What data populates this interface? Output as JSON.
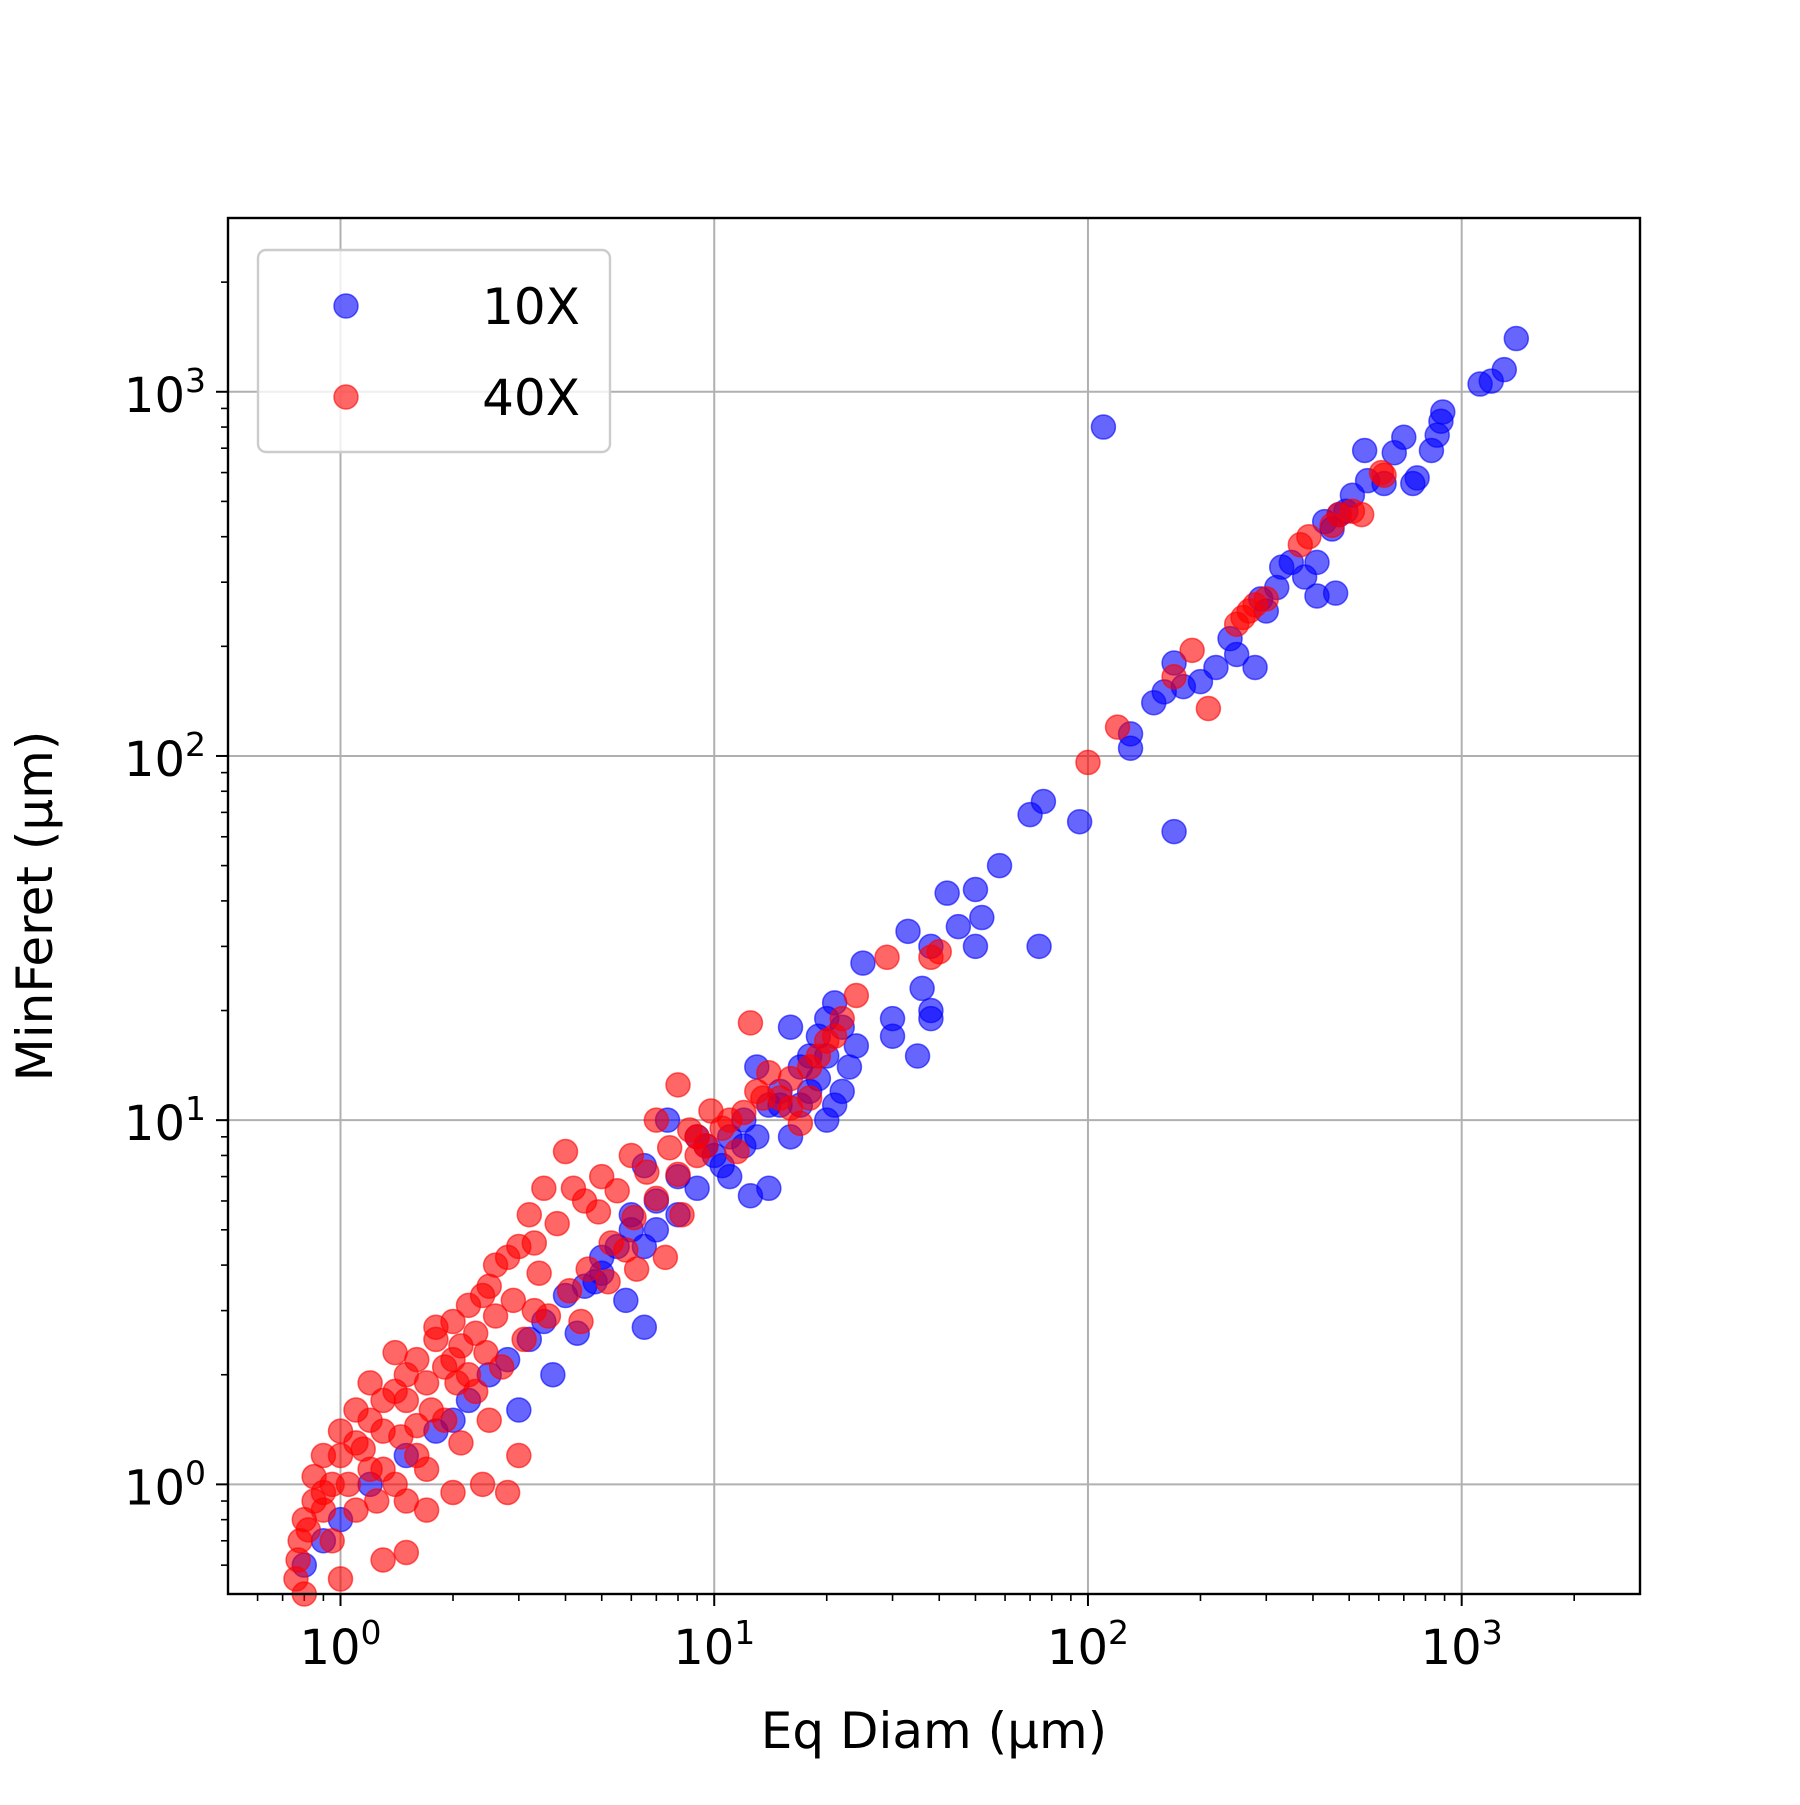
{
  "chart_data": {
    "type": "scatter",
    "title": "",
    "xlabel": "Eq Diam (μm)",
    "ylabel": "MinFeret (μm)",
    "xscale": "log",
    "yscale": "log",
    "xlim": [
      0.5,
      3000
    ],
    "ylim": [
      0.5,
      3000
    ],
    "grid": true,
    "legend_position": "top-left",
    "x_ticks": [
      {
        "base": "10",
        "exp": "0",
        "value": 1
      },
      {
        "base": "10",
        "exp": "1",
        "value": 10
      },
      {
        "base": "10",
        "exp": "2",
        "value": 100
      },
      {
        "base": "10",
        "exp": "3",
        "value": 1000
      }
    ],
    "y_ticks": [
      {
        "base": "10",
        "exp": "0",
        "value": 1
      },
      {
        "base": "10",
        "exp": "1",
        "value": 10
      },
      {
        "base": "10",
        "exp": "2",
        "value": 100
      },
      {
        "base": "10",
        "exp": "3",
        "value": 1000
      }
    ],
    "series": [
      {
        "name": "10X",
        "color": "#0000ff",
        "alpha": 0.6,
        "points": [
          [
            1400,
            1400
          ],
          [
            1300,
            1150
          ],
          [
            1200,
            1070
          ],
          [
            1120,
            1050
          ],
          [
            890,
            880
          ],
          [
            880,
            830
          ],
          [
            860,
            760
          ],
          [
            830,
            690
          ],
          [
            760,
            580
          ],
          [
            740,
            560
          ],
          [
            700,
            750
          ],
          [
            660,
            680
          ],
          [
            620,
            560
          ],
          [
            560,
            570
          ],
          [
            550,
            690
          ],
          [
            510,
            520
          ],
          [
            490,
            470
          ],
          [
            470,
            460
          ],
          [
            450,
            420
          ],
          [
            430,
            440
          ],
          [
            460,
            280
          ],
          [
            410,
            275
          ],
          [
            410,
            340
          ],
          [
            380,
            310
          ],
          [
            350,
            340
          ],
          [
            330,
            330
          ],
          [
            320,
            290
          ],
          [
            300,
            250
          ],
          [
            290,
            270
          ],
          [
            280,
            175
          ],
          [
            250,
            190
          ],
          [
            240,
            210
          ],
          [
            220,
            175
          ],
          [
            200,
            160
          ],
          [
            180,
            155
          ],
          [
            170,
            180
          ],
          [
            160,
            150
          ],
          [
            150,
            140
          ],
          [
            130,
            115
          ],
          [
            130,
            105
          ],
          [
            110,
            800
          ],
          [
            170,
            62
          ],
          [
            95,
            66
          ],
          [
            76,
            75
          ],
          [
            70,
            69
          ],
          [
            58,
            50
          ],
          [
            50,
            43
          ],
          [
            52,
            36
          ],
          [
            45,
            34
          ],
          [
            50,
            30
          ],
          [
            42,
            42
          ],
          [
            38,
            30
          ],
          [
            33,
            33
          ],
          [
            74,
            30
          ],
          [
            36,
            23
          ],
          [
            38,
            19
          ],
          [
            38,
            20
          ],
          [
            30,
            19
          ],
          [
            30,
            17
          ],
          [
            25,
            27
          ],
          [
            35,
            15
          ],
          [
            21,
            21
          ],
          [
            20,
            19
          ],
          [
            19,
            17
          ],
          [
            18,
            15
          ],
          [
            17,
            14
          ],
          [
            16,
            18
          ],
          [
            15,
            12
          ],
          [
            14,
            11
          ],
          [
            22,
            12
          ],
          [
            21,
            11
          ],
          [
            20,
            10
          ],
          [
            13,
            14
          ],
          [
            12,
            10
          ],
          [
            11,
            9
          ],
          [
            10,
            8
          ],
          [
            9,
            9
          ],
          [
            8,
            7
          ],
          [
            7,
            6
          ],
          [
            6,
            5
          ],
          [
            5,
            4.2
          ],
          [
            4.5,
            3.5
          ],
          [
            4,
            3.3
          ],
          [
            6.5,
            2.7
          ],
          [
            4.3,
            2.6
          ],
          [
            5.8,
            3.2
          ],
          [
            12.5,
            6.2
          ],
          [
            14,
            6.5
          ],
          [
            11,
            7
          ],
          [
            9.5,
            8.5
          ],
          [
            7.5,
            10
          ],
          [
            6.5,
            7.5
          ],
          [
            6,
            5.5
          ],
          [
            5.5,
            4.5
          ],
          [
            3.5,
            2.8
          ],
          [
            3.2,
            2.5
          ],
          [
            3,
            1.6
          ],
          [
            3.7,
            2.0
          ],
          [
            2.5,
            2.0
          ],
          [
            2.0,
            1.5
          ],
          [
            1.5,
            1.2
          ],
          [
            1.2,
            1.0
          ],
          [
            1.0,
            0.8
          ],
          [
            0.9,
            0.7
          ],
          [
            0.8,
            0.6
          ],
          [
            18,
            12
          ],
          [
            16,
            9
          ],
          [
            17,
            11
          ],
          [
            19,
            13
          ],
          [
            20,
            15
          ],
          [
            22,
            18
          ],
          [
            23,
            14
          ],
          [
            24,
            16
          ],
          [
            15,
            11
          ],
          [
            13,
            9
          ],
          [
            12,
            8.5
          ],
          [
            10.5,
            7.5
          ],
          [
            9,
            6.5
          ],
          [
            8,
            5.5
          ],
          [
            7,
            5
          ],
          [
            6.5,
            4.5
          ],
          [
            5,
            3.8
          ],
          [
            4.8,
            3.6
          ],
          [
            2.8,
            2.2
          ],
          [
            2.2,
            1.7
          ],
          [
            1.8,
            1.4
          ]
        ]
      },
      {
        "name": "40X",
        "color": "#ff0000",
        "alpha": 0.6,
        "points": [
          [
            620,
            590
          ],
          [
            610,
            600
          ],
          [
            540,
            460
          ],
          [
            510,
            470
          ],
          [
            470,
            460
          ],
          [
            450,
            430
          ],
          [
            390,
            400
          ],
          [
            370,
            380
          ],
          [
            300,
            270
          ],
          [
            280,
            260
          ],
          [
            270,
            250
          ],
          [
            260,
            240
          ],
          [
            250,
            230
          ],
          [
            190,
            195
          ],
          [
            170,
            165
          ],
          [
            210,
            135
          ],
          [
            120,
            120
          ],
          [
            100,
            96
          ],
          [
            40,
            29
          ],
          [
            38,
            28
          ],
          [
            29,
            28
          ],
          [
            24,
            22
          ],
          [
            12.5,
            18.5
          ],
          [
            21,
            17
          ],
          [
            19,
            15
          ],
          [
            18,
            14
          ],
          [
            16,
            13
          ],
          [
            13,
            12
          ],
          [
            11,
            10
          ],
          [
            9,
            9
          ],
          [
            8,
            12.5
          ],
          [
            7,
            10
          ],
          [
            6,
            8
          ],
          [
            5,
            7
          ],
          [
            4.5,
            6
          ],
          [
            4,
            8.2
          ],
          [
            3.5,
            6.5
          ],
          [
            3.2,
            5.5
          ],
          [
            3,
            4.5
          ],
          [
            2.8,
            4.2
          ],
          [
            2.5,
            3.5
          ],
          [
            2.2,
            3.1
          ],
          [
            2,
            2.8
          ],
          [
            1.8,
            2.5
          ],
          [
            1.6,
            2.2
          ],
          [
            1.5,
            2.0
          ],
          [
            1.4,
            1.8
          ],
          [
            1.3,
            1.7
          ],
          [
            1.2,
            1.5
          ],
          [
            1.1,
            1.3
          ],
          [
            1.0,
            1.2
          ],
          [
            0.95,
            1.0
          ],
          [
            0.9,
            0.95
          ],
          [
            0.85,
            0.9
          ],
          [
            0.8,
            0.8
          ],
          [
            0.78,
            0.7
          ],
          [
            0.77,
            0.62
          ],
          [
            0.76,
            0.55
          ],
          [
            0.8,
            0.5
          ],
          [
            1.0,
            0.55
          ],
          [
            1.3,
            0.62
          ],
          [
            1.5,
            0.65
          ],
          [
            1.7,
            0.85
          ],
          [
            2.0,
            0.95
          ],
          [
            2.4,
            1.0
          ],
          [
            2.8,
            0.95
          ],
          [
            4.4,
            2.8
          ],
          [
            5.2,
            3.6
          ],
          [
            5.8,
            4.4
          ],
          [
            6.2,
            3.9
          ],
          [
            7.4,
            4.2
          ],
          [
            8.2,
            5.5
          ],
          [
            9.5,
            8.5
          ],
          [
            10.5,
            9.5
          ],
          [
            11.5,
            8.2
          ],
          [
            12,
            10.5
          ],
          [
            13.5,
            11.5
          ],
          [
            14,
            13.5
          ],
          [
            15,
            11.5
          ],
          [
            16,
            10.8
          ],
          [
            17,
            9.8
          ],
          [
            18,
            11.5
          ],
          [
            20,
            16.5
          ],
          [
            22,
            19
          ],
          [
            4.2,
            6.5
          ],
          [
            3.8,
            5.2
          ],
          [
            3.3,
            4.6
          ],
          [
            2.6,
            4.0
          ],
          [
            2.4,
            3.3
          ],
          [
            2.0,
            2.2
          ],
          [
            1.8,
            2.7
          ],
          [
            1.4,
            2.3
          ],
          [
            1.2,
            1.9
          ],
          [
            1.1,
            1.6
          ],
          [
            1.0,
            1.4
          ],
          [
            0.9,
            1.2
          ],
          [
            0.85,
            1.05
          ],
          [
            0.95,
            0.7
          ],
          [
            1.1,
            0.85
          ],
          [
            1.25,
            0.9
          ],
          [
            1.4,
            1.0
          ],
          [
            1.6,
            1.2
          ],
          [
            1.9,
            1.5
          ],
          [
            2.3,
            1.8
          ],
          [
            2.7,
            2.1
          ],
          [
            3.1,
            2.5
          ],
          [
            3.6,
            2.9
          ],
          [
            4.1,
            3.4
          ],
          [
            4.6,
            3.9
          ],
          [
            5.3,
            4.6
          ],
          [
            6.1,
            5.4
          ],
          [
            7,
            6.1
          ],
          [
            8,
            7.1
          ],
          [
            9,
            8
          ],
          [
            3.0,
            1.2
          ],
          [
            2.5,
            1.5
          ],
          [
            2.1,
            1.3
          ],
          [
            1.7,
            1.1
          ],
          [
            1.5,
            0.9
          ],
          [
            3.4,
            3.8
          ],
          [
            2.9,
            3.2
          ],
          [
            2.6,
            2.9
          ],
          [
            2.3,
            2.6
          ],
          [
            2.1,
            2.4
          ],
          [
            1.9,
            2.1
          ],
          [
            1.7,
            1.9
          ],
          [
            1.5,
            1.7
          ],
          [
            1.3,
            1.4
          ],
          [
            1.15,
            1.25
          ],
          [
            4.9,
            5.6
          ],
          [
            5.5,
            6.4
          ],
          [
            6.6,
            7.2
          ],
          [
            7.6,
            8.4
          ],
          [
            8.6,
            9.4
          ],
          [
            9.8,
            10.6
          ],
          [
            1.3,
            1.1
          ],
          [
            1.6,
            1.45
          ],
          [
            2.2,
            2.0
          ],
          [
            3.3,
            3.0
          ],
          [
            0.82,
            0.75
          ],
          [
            0.9,
            0.85
          ],
          [
            1.05,
            1.0
          ],
          [
            1.2,
            1.1
          ],
          [
            1.45,
            1.35
          ],
          [
            1.75,
            1.6
          ],
          [
            2.05,
            1.9
          ],
          [
            2.45,
            2.3
          ]
        ]
      }
    ]
  }
}
